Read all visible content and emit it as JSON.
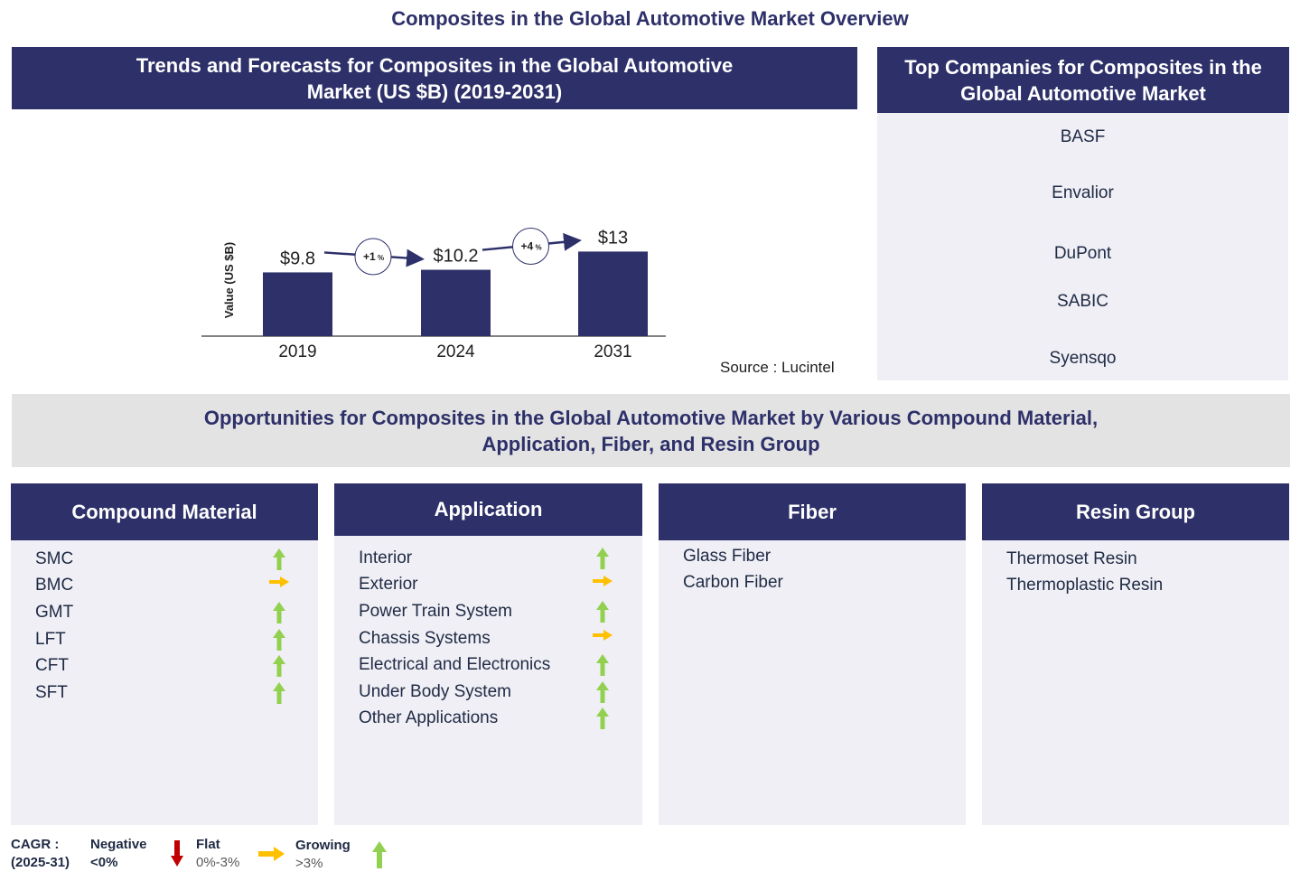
{
  "title": "Composites in the Global Automotive Market Overview",
  "trends_panel": {
    "title_line1": "Trends and Forecasts for Composites in the Global Automotive",
    "title_line2": "Market (US $B) (2019-2031)",
    "source": "Source : Lucintel"
  },
  "chart_data": {
    "type": "bar",
    "categories": [
      "2019",
      "2024",
      "2031"
    ],
    "values": [
      9.8,
      10.2,
      13
    ],
    "data_labels": [
      "$9.8",
      "$10.2",
      "$13"
    ],
    "ylabel": "Value (US $B)",
    "ylim": [
      0,
      14
    ],
    "grid": false,
    "bar_color": "#2d3069",
    "growth_annotations": [
      {
        "from": "2019",
        "to": "2024",
        "label": "+1",
        "unit": "%"
      },
      {
        "from": "2024",
        "to": "2031",
        "label": "+4",
        "unit": "%"
      }
    ]
  },
  "companies_panel": {
    "title_line1": "Top Companies for Composites in the",
    "title_line2": "Global Automotive Market",
    "companies": [
      "BASF",
      "Envalior",
      "DuPont",
      "SABIC",
      "Syensqo"
    ]
  },
  "opportunities": {
    "title_line1": "Opportunities for Composites in the Global Automotive Market by Various Compound Material,",
    "title_line2": "Application, Fiber, and Resin Group"
  },
  "segments": [
    {
      "title": "Compound Material",
      "items": [
        {
          "label": "SMC",
          "trend": "growing"
        },
        {
          "label": "BMC",
          "trend": "flat"
        },
        {
          "label": "GMT",
          "trend": "growing"
        },
        {
          "label": "LFT",
          "trend": "growing"
        },
        {
          "label": "CFT",
          "trend": "growing"
        },
        {
          "label": "SFT",
          "trend": "growing"
        }
      ]
    },
    {
      "title": "Application",
      "items": [
        {
          "label": "Interior",
          "trend": "growing"
        },
        {
          "label": "Exterior",
          "trend": "flat"
        },
        {
          "label": "Power Train System",
          "trend": "growing"
        },
        {
          "label": "Chassis Systems",
          "trend": "flat"
        },
        {
          "label": "Electrical and Electronics",
          "trend": "growing"
        },
        {
          "label": "Under Body System",
          "trend": "growing"
        },
        {
          "label": "Other Applications",
          "trend": "growing"
        }
      ]
    },
    {
      "title": "Fiber",
      "items": [
        {
          "label": "Glass Fiber",
          "trend": null
        },
        {
          "label": "Carbon Fiber",
          "trend": null
        }
      ]
    },
    {
      "title": "Resin Group",
      "items": [
        {
          "label": "Thermoset Resin",
          "trend": null
        },
        {
          "label": "Thermoplastic Resin",
          "trend": null
        }
      ]
    }
  ],
  "legend": {
    "cagr_line1": "CAGR  :",
    "cagr_line2": "(2025-31)",
    "negative_label": "Negative",
    "negative_range": "<0%",
    "flat_label": "Flat",
    "flat_range": "0%-3%",
    "growing_label": "Growing",
    "growing_range": ">3%",
    "colors": {
      "negative": "#c00000",
      "flat": "#ffc000",
      "growing": "#92d050"
    }
  }
}
